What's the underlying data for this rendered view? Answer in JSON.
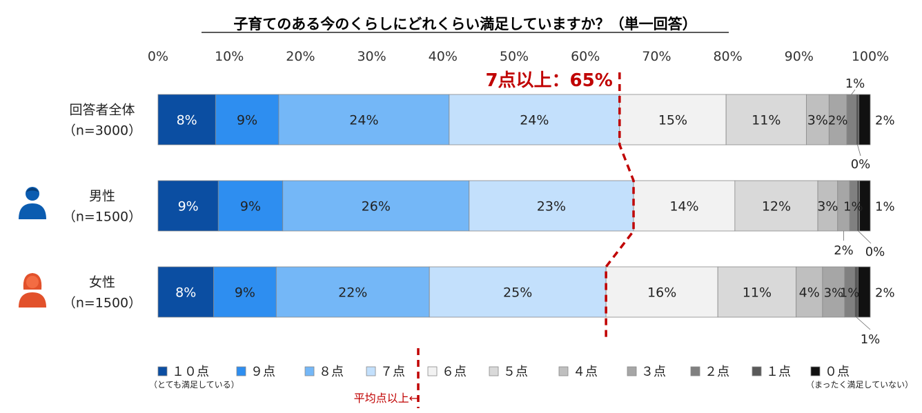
{
  "chart_data": {
    "type": "bar",
    "orientation": "horizontal",
    "stacked": true,
    "title": "子育てのある今のくらしにどれくらい満足していますか？（単一回答）",
    "xlim": [
      0,
      100
    ],
    "x_ticks": [
      "0%",
      "10%",
      "20%",
      "30%",
      "40%",
      "50%",
      "60%",
      "70%",
      "80%",
      "90%",
      "100%"
    ],
    "categories": [
      {
        "line1": "回答者全体",
        "line2": "（n=3000）",
        "icon": ""
      },
      {
        "line1": "男性",
        "line2": "（n=1500）",
        "icon": "male-person-icon"
      },
      {
        "line1": "女性",
        "line2": "（n=1500）",
        "icon": "female-person-icon"
      }
    ],
    "series": [
      {
        "name": "１０点",
        "sub": "（とても満足している）",
        "color": "#0b4ea2",
        "label_color": "#ffffff",
        "values": [
          8.1,
          8.5,
          7.8
        ],
        "labels": [
          "8%",
          "9%",
          "8%"
        ]
      },
      {
        "name": "９点",
        "color": "#2e8ef0",
        "label_color": "#222222",
        "values": [
          8.9,
          9.1,
          8.8
        ],
        "labels": [
          "9%",
          "9%",
          "9%"
        ]
      },
      {
        "name": "８点",
        "color": "#74b7f7",
        "label_color": "#222222",
        "values": [
          24.0,
          26.3,
          21.5
        ],
        "labels": [
          "24%",
          "26%",
          "22%"
        ]
      },
      {
        "name": "７点",
        "color": "#c3e0fc",
        "label_color": "#222222",
        "values": [
          24.0,
          23.2,
          24.8
        ],
        "labels": [
          "24%",
          "23%",
          "25%"
        ]
      },
      {
        "name": "６点",
        "color": "#f2f2f2",
        "label_color": "#222222",
        "values": [
          15.0,
          14.3,
          15.7
        ],
        "labels": [
          "15%",
          "14%",
          "16%"
        ]
      },
      {
        "name": "５点",
        "color": "#d9d9d9",
        "label_color": "#222222",
        "values": [
          11.3,
          11.7,
          11.0
        ],
        "labels": [
          "11%",
          "12%",
          "11%"
        ]
      },
      {
        "name": "４点",
        "color": "#bfbfbf",
        "label_color": "#222222",
        "values": [
          3.2,
          2.8,
          3.7
        ],
        "labels": [
          "3%",
          "3%",
          "4%"
        ]
      },
      {
        "name": "３点",
        "color": "#a6a6a6",
        "label_color": "#222222",
        "values": [
          2.5,
          1.7,
          3.1
        ],
        "labels": [
          "2%",
          "2%",
          "3%"
        ]
      },
      {
        "name": "２点",
        "color": "#808080",
        "label_color": "#222222",
        "values": [
          1.3,
          1.0,
          1.4
        ],
        "labels": [
          "1%",
          "1%",
          "1%"
        ]
      },
      {
        "name": "１点",
        "color": "#595959",
        "label_color": "#222222",
        "values": [
          0.4,
          0.4,
          0.5
        ],
        "labels": [
          "0%",
          "0%",
          "1%"
        ]
      },
      {
        "name": "０点",
        "sub": "（まったく満足していない）",
        "color": "#111111",
        "label_color": "#222222",
        "values": [
          1.6,
          1.5,
          1.7
        ],
        "labels": [
          "2%",
          "1%",
          "2%"
        ]
      }
    ],
    "highlight": {
      "text": "7点以上：65%",
      "color": "#c00000"
    },
    "average_marker": {
      "label": "平均点以上←",
      "color": "#c00000"
    }
  }
}
